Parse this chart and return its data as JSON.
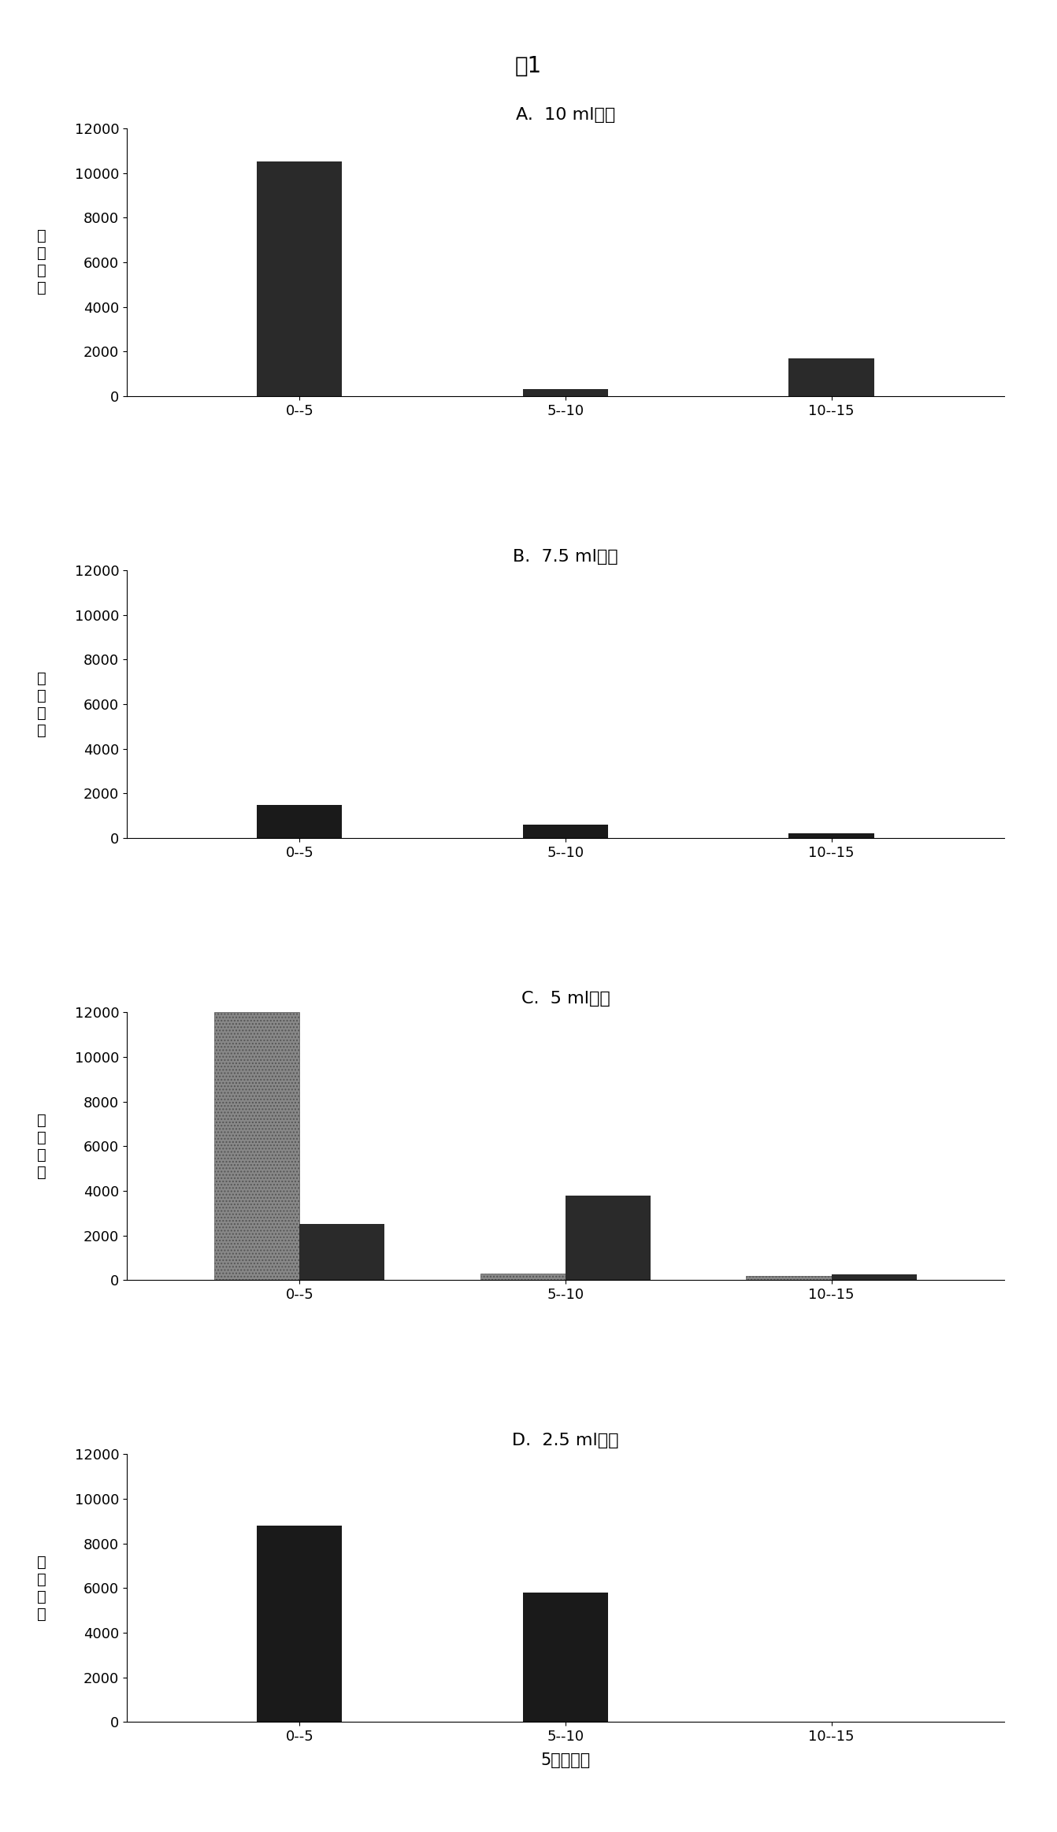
{
  "title": "图1",
  "xlabel": "5米的肠段",
  "ylabel_chars": [
    "幼",
    "虫",
    "数",
    "量"
  ],
  "categories": [
    "0--5",
    "5--10",
    "10--15"
  ],
  "panels": [
    {
      "subtitle": "A.  10 ml粘液",
      "subtitle_loc": "center",
      "bars": [
        {
          "values": [
            10500,
            300,
            1700
          ],
          "color": "#2a2a2a",
          "hatch": null
        }
      ],
      "ylim": [
        0,
        12000
      ],
      "yticks": [
        0,
        2000,
        4000,
        6000,
        8000,
        10000,
        12000
      ]
    },
    {
      "subtitle": "B.  7.5 ml粘液",
      "subtitle_loc": "center",
      "bars": [
        {
          "values": [
            1500,
            600,
            200
          ],
          "color": "#1a1a1a",
          "hatch": null
        }
      ],
      "ylim": [
        0,
        12000
      ],
      "yticks": [
        0,
        2000,
        4000,
        6000,
        8000,
        10000,
        12000
      ]
    },
    {
      "subtitle": "C.  5 ml粘液",
      "subtitle_loc": "center",
      "bars": [
        {
          "values": [
            12000,
            300,
            200
          ],
          "color": "#888888",
          "hatch": "...."
        },
        {
          "values": [
            2500,
            3800,
            250
          ],
          "color": "#2a2a2a",
          "hatch": null
        }
      ],
      "ylim": [
        0,
        12000
      ],
      "yticks": [
        0,
        2000,
        4000,
        6000,
        8000,
        10000,
        12000
      ]
    },
    {
      "subtitle": "D.  2.5 ml粘液",
      "subtitle_loc": "center",
      "bars": [
        {
          "values": [
            8800,
            5800,
            0
          ],
          "color": "#1a1a1a",
          "hatch": null
        }
      ],
      "ylim": [
        0,
        12000
      ],
      "yticks": [
        0,
        2000,
        4000,
        6000,
        8000,
        10000,
        12000
      ]
    }
  ],
  "background_color": "#ffffff",
  "bar_width": 0.32,
  "title_fontsize": 20,
  "subtitle_fontsize": 16,
  "tick_fontsize": 13,
  "ylabel_fontsize": 14,
  "xlabel_fontsize": 15
}
